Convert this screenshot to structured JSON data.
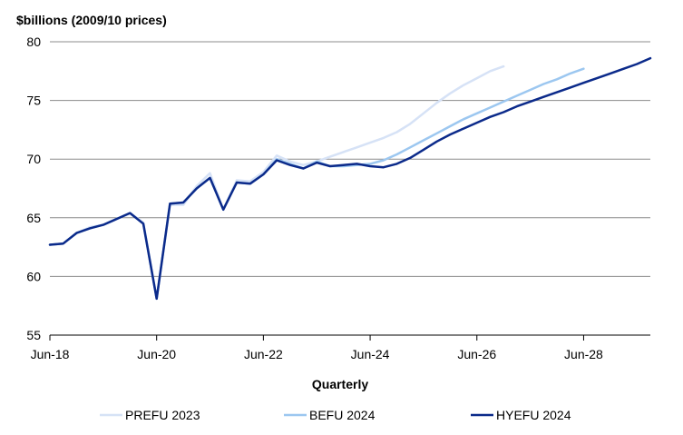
{
  "chart_data": {
    "type": "line",
    "ylabel": "$billions (2009/10 prices)",
    "xlabel": "Quarterly",
    "ylim": [
      55,
      80
    ],
    "yticks": [
      55,
      60,
      65,
      70,
      75,
      80
    ],
    "xticks": [
      {
        "label": "Jun-18",
        "x": 0
      },
      {
        "label": "Jun-20",
        "x": 8
      },
      {
        "label": "Jun-22",
        "x": 16
      },
      {
        "label": "Jun-24",
        "x": 24
      },
      {
        "label": "Jun-26",
        "x": 32
      },
      {
        "label": "Jun-28",
        "x": 40
      }
    ],
    "grid": "horizontal",
    "legend_position": "bottom",
    "series": [
      {
        "name": "PREFU 2023",
        "color": "#d6e2f6",
        "points": [
          [
            0,
            62.7
          ],
          [
            1,
            62.8
          ],
          [
            2,
            63.7
          ],
          [
            3,
            64.2
          ],
          [
            4,
            64.4
          ],
          [
            5,
            64.9
          ],
          [
            6,
            65.4
          ],
          [
            7,
            64.6
          ],
          [
            8,
            58.1
          ],
          [
            9,
            66.1
          ],
          [
            10,
            66.1
          ],
          [
            11,
            67.7
          ],
          [
            12,
            68.8
          ],
          [
            13,
            65.7
          ],
          [
            14,
            68.2
          ],
          [
            15,
            68.1
          ],
          [
            16,
            68.9
          ],
          [
            17,
            70.3
          ],
          [
            18,
            69.8
          ],
          [
            19,
            69.5
          ],
          [
            20,
            69.8
          ],
          [
            21,
            70.2
          ],
          [
            22,
            70.6
          ],
          [
            23,
            71.0
          ],
          [
            24,
            71.4
          ],
          [
            25,
            71.8
          ],
          [
            26,
            72.3
          ],
          [
            27,
            73.0
          ],
          [
            28,
            73.9
          ],
          [
            29,
            74.8
          ],
          [
            30,
            75.6
          ],
          [
            31,
            76.3
          ],
          [
            32,
            76.9
          ],
          [
            33,
            77.5
          ],
          [
            34,
            77.9
          ]
        ]
      },
      {
        "name": "BEFU 2024",
        "color": "#9cc7f0",
        "points": [
          [
            0,
            62.7
          ],
          [
            1,
            62.8
          ],
          [
            2,
            63.7
          ],
          [
            3,
            64.1
          ],
          [
            4,
            64.4
          ],
          [
            5,
            64.9
          ],
          [
            6,
            65.4
          ],
          [
            7,
            64.5
          ],
          [
            8,
            58.1
          ],
          [
            9,
            66.2
          ],
          [
            10,
            66.3
          ],
          [
            11,
            67.5
          ],
          [
            12,
            68.4
          ],
          [
            13,
            65.7
          ],
          [
            14,
            68.0
          ],
          [
            15,
            67.9
          ],
          [
            16,
            68.7
          ],
          [
            17,
            70.0
          ],
          [
            18,
            69.6
          ],
          [
            19,
            69.2
          ],
          [
            20,
            69.8
          ],
          [
            21,
            69.4
          ],
          [
            22,
            69.4
          ],
          [
            23,
            69.5
          ],
          [
            24,
            69.6
          ],
          [
            25,
            69.9
          ],
          [
            26,
            70.4
          ],
          [
            27,
            71.0
          ],
          [
            28,
            71.6
          ],
          [
            29,
            72.2
          ],
          [
            30,
            72.8
          ],
          [
            31,
            73.4
          ],
          [
            32,
            73.9
          ],
          [
            33,
            74.4
          ],
          [
            34,
            74.9
          ],
          [
            35,
            75.4
          ],
          [
            36,
            75.9
          ],
          [
            37,
            76.4
          ],
          [
            38,
            76.8
          ],
          [
            39,
            77.3
          ],
          [
            40,
            77.7
          ]
        ]
      },
      {
        "name": "HYEFU 2024",
        "color": "#0b2a8a",
        "points": [
          [
            0,
            62.7
          ],
          [
            1,
            62.8
          ],
          [
            2,
            63.7
          ],
          [
            3,
            64.1
          ],
          [
            4,
            64.4
          ],
          [
            5,
            64.9
          ],
          [
            6,
            65.4
          ],
          [
            7,
            64.5
          ],
          [
            8,
            58.1
          ],
          [
            9,
            66.2
          ],
          [
            10,
            66.3
          ],
          [
            11,
            67.5
          ],
          [
            12,
            68.4
          ],
          [
            13,
            65.7
          ],
          [
            14,
            68.0
          ],
          [
            15,
            67.9
          ],
          [
            16,
            68.7
          ],
          [
            17,
            69.9
          ],
          [
            18,
            69.5
          ],
          [
            19,
            69.2
          ],
          [
            20,
            69.7
          ],
          [
            21,
            69.4
          ],
          [
            22,
            69.5
          ],
          [
            23,
            69.6
          ],
          [
            24,
            69.4
          ],
          [
            25,
            69.3
          ],
          [
            26,
            69.6
          ],
          [
            27,
            70.1
          ],
          [
            28,
            70.8
          ],
          [
            29,
            71.5
          ],
          [
            30,
            72.1
          ],
          [
            31,
            72.6
          ],
          [
            32,
            73.1
          ],
          [
            33,
            73.6
          ],
          [
            34,
            74.0
          ],
          [
            35,
            74.5
          ],
          [
            36,
            74.9
          ],
          [
            37,
            75.3
          ],
          [
            38,
            75.7
          ],
          [
            39,
            76.1
          ],
          [
            40,
            76.5
          ],
          [
            41,
            76.9
          ],
          [
            42,
            77.3
          ],
          [
            43,
            77.7
          ],
          [
            44,
            78.1
          ],
          [
            45,
            78.6
          ]
        ]
      }
    ]
  }
}
